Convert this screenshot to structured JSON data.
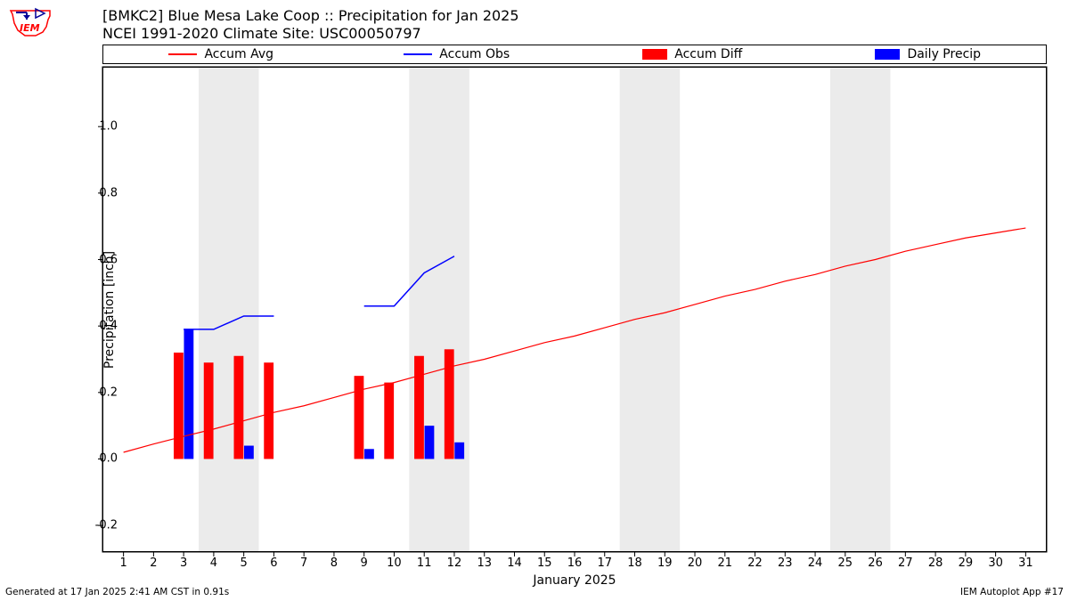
{
  "title_line1": "[BMKC2] Blue Mesa Lake Coop :: Precipitation for Jan 2025",
  "title_line2": "NCEI 1991-2020 Climate Site: USC00050797",
  "footer_left": "Generated at 17 Jan 2025 2:41 AM CST in 0.91s",
  "footer_right": "IEM Autoplot App #17",
  "legend": {
    "items": [
      {
        "kind": "line",
        "label": "Accum Avg",
        "color": "#ff0000"
      },
      {
        "kind": "line",
        "label": "Accum Obs",
        "color": "#0000ff"
      },
      {
        "kind": "patch",
        "label": "Accum Diff",
        "color": "#ff0000"
      },
      {
        "kind": "patch",
        "label": "Daily Precip",
        "color": "#0000ff"
      }
    ]
  },
  "chart": {
    "type": "mixed-bar-line",
    "background_color": "#ffffff",
    "weekend_band_color": "#ebebeb",
    "grid_color": "#000000",
    "axis_color": "#000000",
    "xlabel": "January 2025",
    "ylabel": "Precipitation [inch]",
    "label_fontsize": 14,
    "title_fontsize": 16,
    "tick_fontsize": 13,
    "xlim": [
      0.3,
      31.7
    ],
    "ylim": [
      -0.28,
      1.18
    ],
    "xticks": [
      1,
      2,
      3,
      4,
      5,
      6,
      7,
      8,
      9,
      10,
      11,
      12,
      13,
      14,
      15,
      16,
      17,
      18,
      19,
      20,
      21,
      22,
      23,
      24,
      25,
      26,
      27,
      28,
      29,
      30,
      31
    ],
    "yticks": [
      -0.2,
      0.0,
      0.2,
      0.4,
      0.6,
      0.8,
      1.0
    ],
    "weekend_bands": [
      [
        3.5,
        5.5
      ],
      [
        10.5,
        12.5
      ],
      [
        17.5,
        19.5
      ],
      [
        24.5,
        26.5
      ]
    ],
    "bar_width": 0.32,
    "bars": {
      "accum_diff": {
        "color": "#ff0000",
        "offset": -0.17,
        "data": {
          "3": 0.32,
          "4": 0.29,
          "5": 0.31,
          "6": 0.29,
          "9": 0.25,
          "10": 0.23,
          "11": 0.31,
          "12": 0.33
        }
      },
      "daily_precip": {
        "color": "#0000ff",
        "offset": 0.17,
        "data": {
          "3": 0.39,
          "5": 0.04,
          "9": 0.03,
          "11": 0.1,
          "12": 0.05
        }
      }
    },
    "lines": {
      "accum_avg": {
        "color": "#ff0000",
        "width": 1.2,
        "segments": [
          [
            [
              1,
              0.02
            ],
            [
              2,
              0.045
            ],
            [
              3,
              0.068
            ],
            [
              4,
              0.09
            ],
            [
              5,
              0.115
            ],
            [
              6,
              0.14
            ],
            [
              7,
              0.16
            ],
            [
              8,
              0.185
            ],
            [
              9,
              0.21
            ],
            [
              10,
              0.23
            ],
            [
              11,
              0.255
            ],
            [
              12,
              0.28
            ],
            [
              13,
              0.3
            ],
            [
              14,
              0.325
            ],
            [
              15,
              0.35
            ],
            [
              16,
              0.37
            ],
            [
              17,
              0.395
            ],
            [
              18,
              0.42
            ],
            [
              19,
              0.44
            ],
            [
              20,
              0.465
            ],
            [
              21,
              0.49
            ],
            [
              22,
              0.51
            ],
            [
              23,
              0.535
            ],
            [
              24,
              0.555
            ],
            [
              25,
              0.58
            ],
            [
              26,
              0.6
            ],
            [
              27,
              0.625
            ],
            [
              28,
              0.645
            ],
            [
              29,
              0.665
            ],
            [
              30,
              0.68
            ],
            [
              31,
              0.695
            ]
          ]
        ]
      },
      "accum_obs": {
        "color": "#0000ff",
        "width": 1.5,
        "segments": [
          [
            [
              3,
              0.39
            ],
            [
              4,
              0.39
            ],
            [
              5,
              0.43
            ],
            [
              6,
              0.43
            ]
          ],
          [
            [
              9,
              0.46
            ],
            [
              10,
              0.46
            ],
            [
              11,
              0.56
            ],
            [
              12,
              0.61
            ]
          ]
        ]
      }
    }
  }
}
